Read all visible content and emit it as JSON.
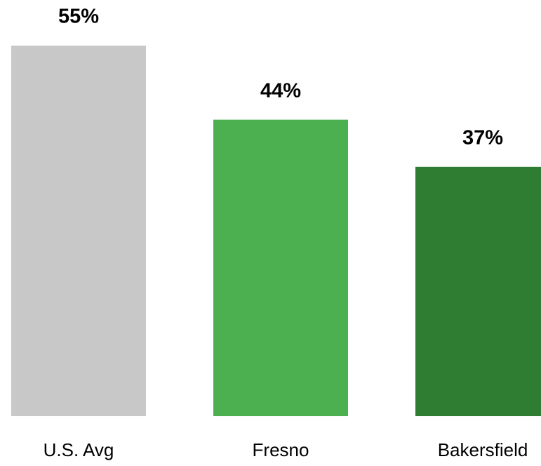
{
  "chart_data": {
    "type": "bar",
    "categories": [
      "U.S. Avg",
      "Fresno",
      "Bakersfield"
    ],
    "values": [
      55,
      44,
      37
    ],
    "value_labels": [
      "55%",
      "44%",
      "37%"
    ],
    "colors": [
      "#c8c8c8",
      "#4caf50",
      "#2e7d32"
    ]
  }
}
